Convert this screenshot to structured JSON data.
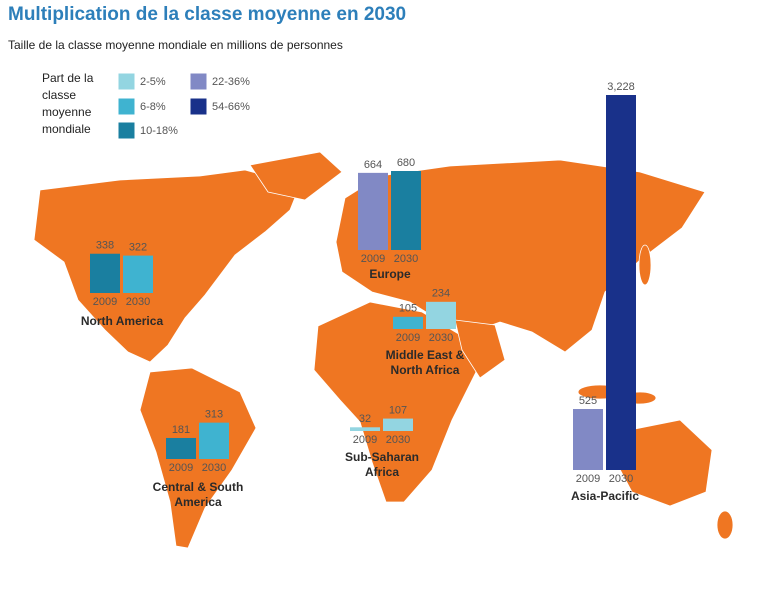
{
  "chart_data": {
    "type": "map-bar",
    "title": "Multiplication de la classe moyenne en 2030",
    "subtitle": "Taille de la classe moyenne mondiale en millions de personnes",
    "legend_title": "Part de la classe moyenne mondiale",
    "legend": [
      {
        "label": "2-5%",
        "color": "#93d5e1"
      },
      {
        "label": "6-8%",
        "color": "#3fb3d0"
      },
      {
        "label": "10-18%",
        "color": "#1a7fa0"
      },
      {
        "label": "22-36%",
        "color": "#8189c5"
      },
      {
        "label": "54-66%",
        "color": "#19318a"
      }
    ],
    "categories": [
      "North America",
      "Europe",
      "Middle East & North Africa",
      "Central & South America",
      "Sub-Saharan Africa",
      "Asia-Pacific"
    ],
    "series": [
      {
        "name": "2009",
        "values": [
          338,
          664,
          105,
          181,
          32,
          525
        ],
        "colors": [
          "#1a7fa0",
          "#8189c5",
          "#3fb3d0",
          "#1a7fa0",
          "#93d5e1",
          "#8189c5"
        ]
      },
      {
        "name": "2030",
        "values": [
          322,
          680,
          234,
          313,
          107,
          3228
        ],
        "value_labels": [
          "322",
          "680",
          "234",
          "313",
          "107",
          "3,228"
        ],
        "colors": [
          "#3fb3d0",
          "#1a7fa0",
          "#93d5e1",
          "#3fb3d0",
          "#93d5e1",
          "#19318a"
        ]
      }
    ]
  }
}
